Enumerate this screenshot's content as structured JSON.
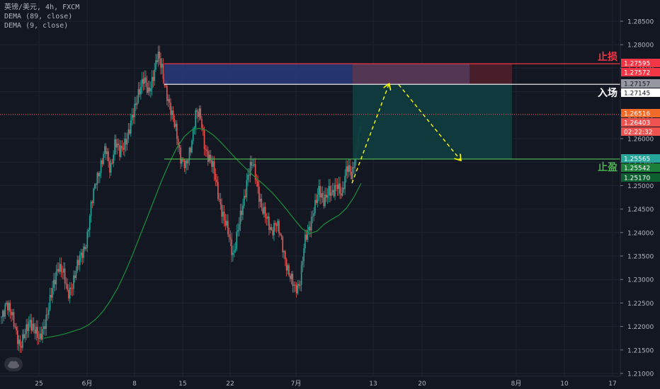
{
  "header": {
    "symbol": "英镑/美元, 4h, FXCM",
    "indicators": [
      "DEMA (89, close)",
      "DEMA (9, close)"
    ]
  },
  "chart_data": {
    "type": "candlestick",
    "title": "英镑/美元, 4h, FXCM",
    "ylim": [
      1.21,
      1.285
    ],
    "y_ticks": [
      "1.28500",
      "1.28000",
      "1.27500",
      "1.27000",
      "1.26500",
      "1.26000",
      "1.25500",
      "1.25000",
      "1.24500",
      "1.24000",
      "1.23500",
      "1.23000",
      "1.22500",
      "1.22000",
      "1.21500",
      "1.21000"
    ],
    "x_labels": [
      "25",
      "6月",
      "8",
      "15",
      "22",
      "7月",
      "13",
      "20",
      "8月",
      "10",
      "17"
    ],
    "series": [
      {
        "name": "price",
        "values": [
          1.222,
          1.2255,
          1.2225,
          1.2195,
          1.216,
          1.218,
          1.2215,
          1.2195,
          1.2165,
          1.2205,
          1.224,
          1.2285,
          1.2335,
          1.2315,
          1.2265,
          1.2295,
          1.2325,
          1.2355,
          1.2385,
          1.2455,
          1.2515,
          1.2545,
          1.2575,
          1.2535,
          1.2595,
          1.2565,
          1.2595,
          1.2615,
          1.2655,
          1.2705,
          1.2725,
          1.2695,
          1.2735,
          1.2775,
          1.2745,
          1.2695,
          1.2645,
          1.2615,
          1.2555,
          1.2535,
          1.2585,
          1.2655,
          1.2645,
          1.2585,
          1.2555,
          1.2525,
          1.2475,
          1.2425,
          1.2395,
          1.2355,
          1.2405,
          1.2455,
          1.2525,
          1.2545,
          1.2505,
          1.2455,
          1.2425,
          1.2405,
          1.2425,
          1.2385,
          1.2345,
          1.2305,
          1.2275,
          1.2295,
          1.2375,
          1.2405,
          1.2455,
          1.2485,
          1.2465,
          1.2495,
          1.2475,
          1.2505,
          1.2485,
          1.2535,
          1.2525,
          1.2585,
          1.2625
        ]
      },
      {
        "name": "DEMA (89, close)",
        "values": [
          1.2175,
          1.2178,
          1.2181,
          1.2185,
          1.219,
          1.2195,
          1.2203,
          1.2215,
          1.2232,
          1.2255,
          1.2282,
          1.2315,
          1.2352,
          1.2392,
          1.2432,
          1.2472,
          1.2512,
          1.2548,
          1.258,
          1.2604,
          1.2618,
          1.2622,
          1.2618,
          1.2607,
          1.2592,
          1.2575,
          1.2558,
          1.2542,
          1.2527,
          1.2513,
          1.2499,
          1.2484,
          1.2466,
          1.2447,
          1.2427,
          1.2408,
          1.2398,
          1.2403,
          1.2418,
          1.2428,
          1.2437,
          1.2452,
          1.2475,
          1.2505
        ]
      }
    ],
    "risk_reward": {
      "stop_loss": {
        "label": "止损",
        "price_labels": [
          "1.27595",
          "1.27572"
        ],
        "color": "#f23645"
      },
      "entry": {
        "label": "入场",
        "price_labels": [
          "1.27157",
          "1.27145"
        ],
        "color": "#ffffff"
      },
      "take_profit": {
        "label": "止盈",
        "price_labels": [
          "1.25565",
          "1.25542"
        ],
        "color": "#4caf50"
      }
    },
    "current_price_labels": [
      "1.26516",
      "1.26403"
    ],
    "countdown": "02:22:32",
    "extra_price_label": "1.25170"
  }
}
